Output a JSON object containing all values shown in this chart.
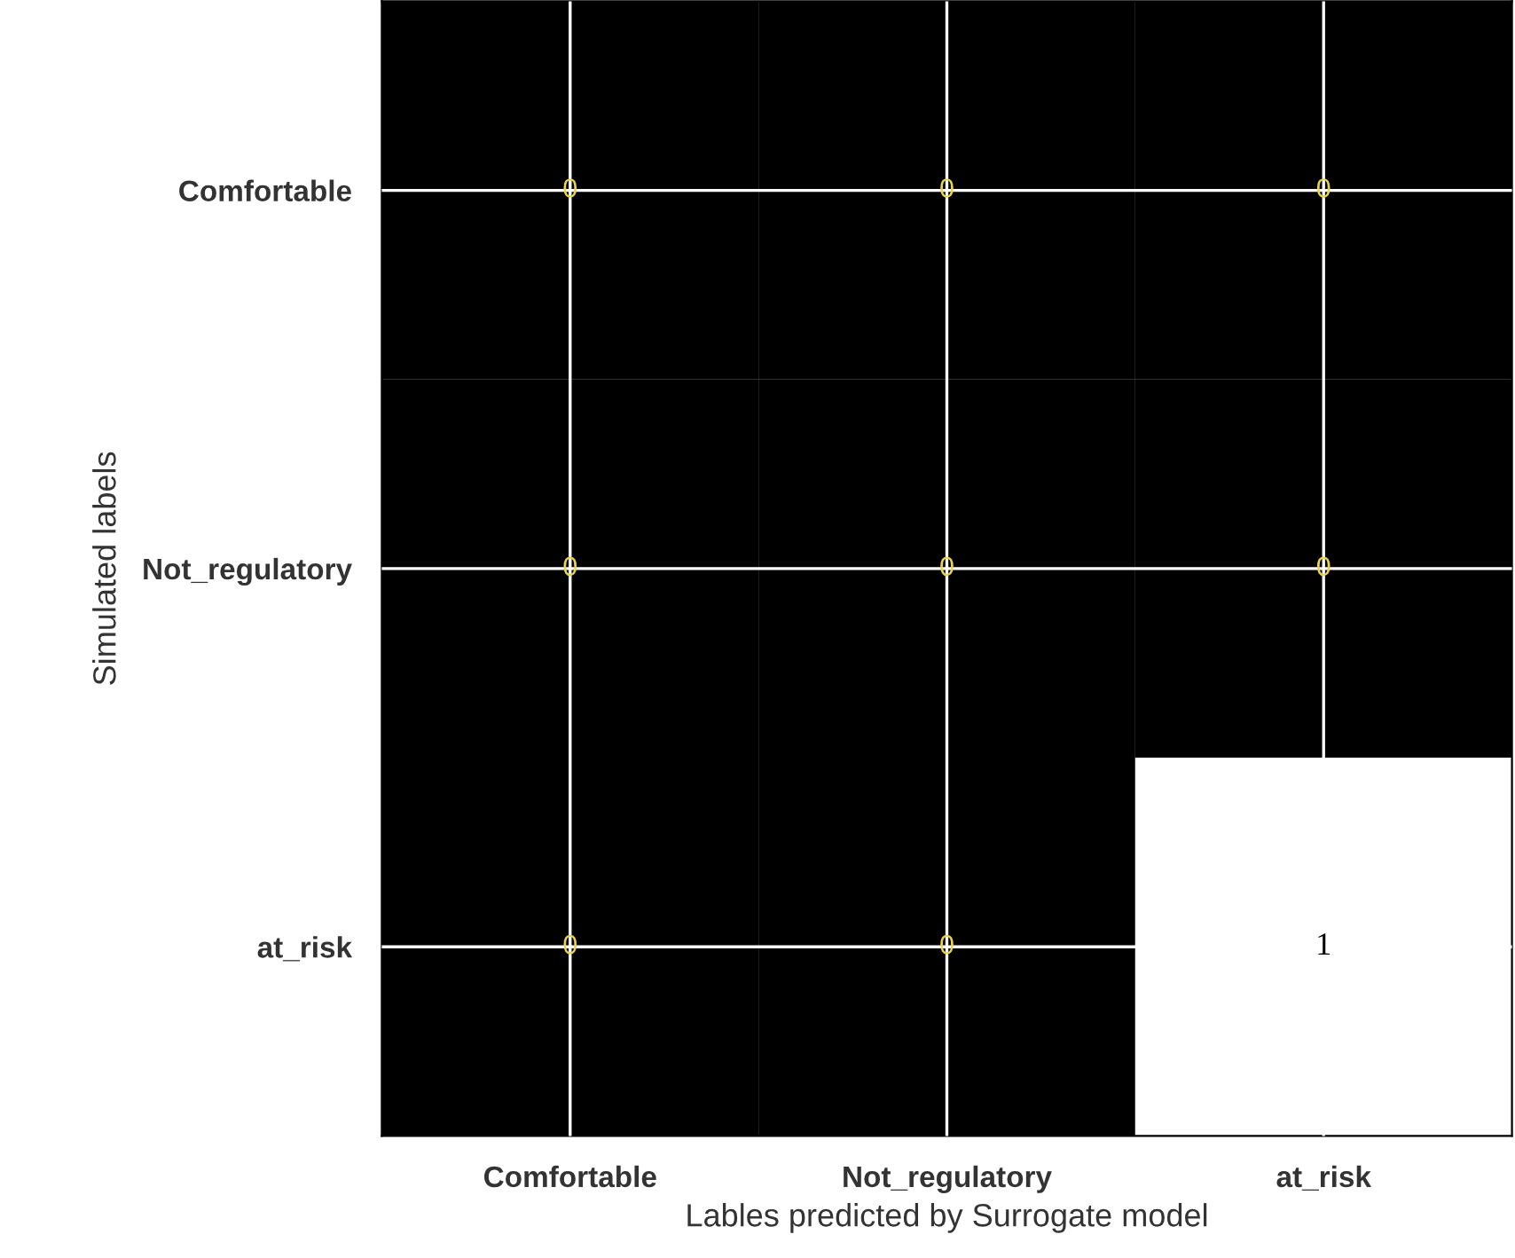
{
  "chart_data": {
    "type": "heatmap",
    "categories": [
      "Comfortable",
      "Not_regulatory",
      "at_risk"
    ],
    "y_categories": [
      "Comfortable",
      "Not_regulatory",
      "at_risk"
    ],
    "cells": [
      [
        0,
        0,
        0
      ],
      [
        0,
        0,
        0
      ],
      [
        0,
        0,
        1
      ]
    ],
    "xlabel": "Lables predicted by Surrogate model",
    "ylabel": "Simulated labels",
    "data_labels": true,
    "grid": true
  }
}
